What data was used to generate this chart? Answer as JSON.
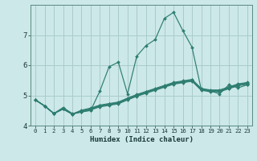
{
  "title": "",
  "xlabel": "Humidex (Indice chaleur)",
  "ylabel": "",
  "bg_color": "#cce8e8",
  "line_color": "#2d7d70",
  "grid_color": "#aacccc",
  "x_values": [
    0,
    1,
    2,
    3,
    4,
    5,
    6,
    7,
    8,
    9,
    10,
    11,
    12,
    13,
    14,
    15,
    16,
    17,
    18,
    19,
    20,
    21,
    22,
    23
  ],
  "series": [
    [
      4.85,
      4.65,
      4.4,
      4.6,
      4.4,
      4.45,
      4.5,
      5.15,
      5.95,
      6.1,
      5.05,
      6.3,
      6.65,
      6.85,
      7.55,
      7.75,
      7.15,
      6.6,
      5.2,
      5.15,
      5.05,
      5.35,
      5.25,
      5.35
    ],
    [
      4.85,
      4.65,
      4.4,
      4.55,
      4.38,
      4.45,
      4.52,
      4.62,
      4.67,
      4.72,
      4.85,
      4.97,
      5.07,
      5.17,
      5.27,
      5.37,
      5.42,
      5.47,
      5.17,
      5.12,
      5.12,
      5.22,
      5.32,
      5.37
    ],
    [
      4.85,
      4.65,
      4.4,
      4.55,
      4.38,
      4.47,
      4.54,
      4.64,
      4.69,
      4.74,
      4.87,
      4.99,
      5.09,
      5.19,
      5.29,
      5.39,
      5.44,
      5.49,
      5.19,
      5.14,
      5.14,
      5.24,
      5.34,
      5.39
    ],
    [
      4.85,
      4.65,
      4.4,
      4.55,
      4.38,
      4.49,
      4.56,
      4.66,
      4.71,
      4.76,
      4.89,
      5.01,
      5.11,
      5.21,
      5.31,
      5.41,
      5.46,
      5.51,
      5.21,
      5.16,
      5.16,
      5.26,
      5.36,
      5.41
    ],
    [
      4.85,
      4.65,
      4.4,
      4.55,
      4.38,
      4.51,
      4.58,
      4.68,
      4.73,
      4.78,
      4.91,
      5.03,
      5.13,
      5.23,
      5.33,
      5.43,
      5.48,
      5.53,
      5.23,
      5.18,
      5.18,
      5.28,
      5.38,
      5.43
    ]
  ],
  "xlim": [
    -0.5,
    23.5
  ],
  "ylim": [
    4.0,
    8.0
  ],
  "yticks": [
    4,
    5,
    6,
    7
  ],
  "xticks": [
    0,
    1,
    2,
    3,
    4,
    5,
    6,
    7,
    8,
    9,
    10,
    11,
    12,
    13,
    14,
    15,
    16,
    17,
    18,
    19,
    20,
    21,
    22,
    23
  ],
  "xlabel_fontsize": 6.5,
  "ytick_fontsize": 6.5,
  "xtick_fontsize": 5.2
}
